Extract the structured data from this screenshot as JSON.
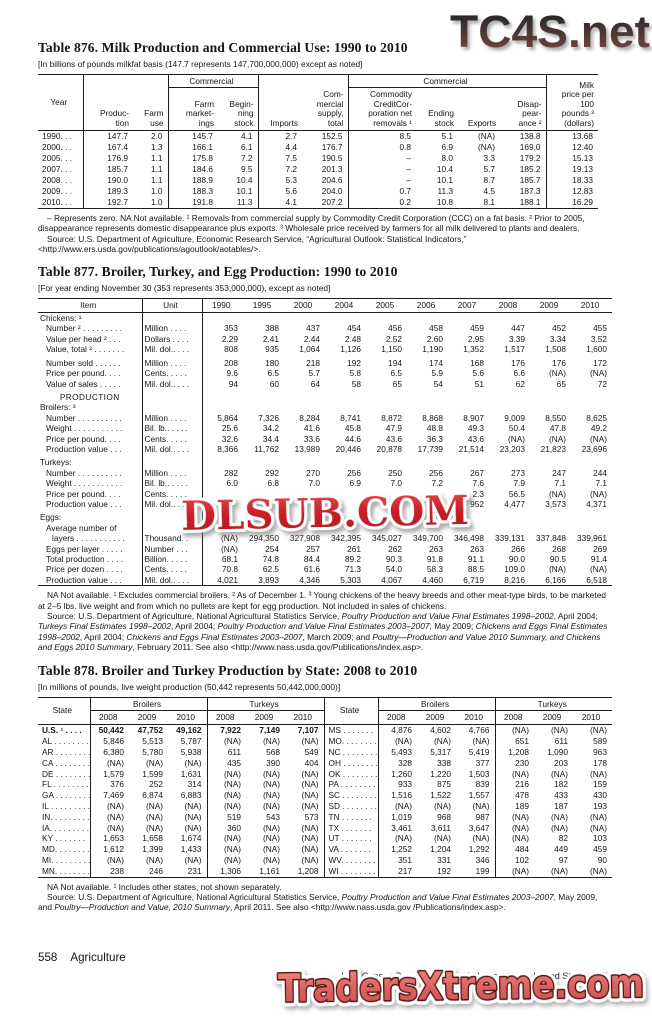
{
  "watermarks": {
    "top": "TC4S.net",
    "middle": "DLSUB.COM",
    "bottom": "TradersXtreme.com",
    "colors": {
      "top_gradient_start": "#2a2a2a",
      "top_gradient_end": "#7d4a42",
      "middle_red_light": "#e8504e",
      "middle_red_dark": "#b01820",
      "bottom_fill_light": "#ef8c85",
      "bottom_fill_dark": "#c75350",
      "bottom_outline": "#5c1616"
    }
  },
  "table876": {
    "title": "Table 876. Milk Production and Commercial Use: 1990 to 2010",
    "bracket": "[In billions of pounds milkfat basis (147.7 represents 147,700,000,000) except as noted]",
    "header": {
      "year": "Year",
      "production": "Produc-\ntion",
      "farm_use": "Farm\nuse",
      "commercial_group1": "Commercial",
      "farm_marketings": "Farm\nmarket-\nings",
      "beginning_stock": "Begin-\nning\nstock",
      "imports": "Imports",
      "commercial_supply": "Com-\nmercial\nsupply,\ntotal",
      "commercial_group2": "Commercial",
      "ccc_removals": "Commodity\nCreditCor-\nporation net\nremovals ¹",
      "ending_stock": "Ending\nstock",
      "exports": "Exports",
      "disappearance": "Disap-\npear-\nance ²",
      "milk_price": "Milk\nprice per\n100\npounds ³\n(dollars)"
    },
    "rows": [
      [
        "1990. . .",
        "147.7",
        "2.0",
        "145.7",
        "4.1",
        "2.7",
        "152.5",
        "8.5",
        "5.1",
        "(NA)",
        "138.8",
        "13.68"
      ],
      [
        "2000. . .",
        "167.4",
        "1.3",
        "166.1",
        "6.1",
        "4.4",
        "176.7",
        "0.8",
        "6.9",
        "(NA)",
        "169.0",
        "12.40"
      ],
      [
        "2005. . .",
        "176.9",
        "1.1",
        "175.8",
        "7.2",
        "7.5",
        "190.5",
        "–",
        "8.0",
        "3.3",
        "179.2",
        "15.13"
      ],
      [
        "2007. . .",
        "185.7",
        "1.1",
        "184.6",
        "9.5",
        "7.2",
        "201.3",
        "–",
        "10.4",
        "5.7",
        "185.2",
        "19.13"
      ],
      [
        "2008. . .",
        "190.0",
        "1.1",
        "188.9",
        "10.4",
        "5.3",
        "204.6",
        "–",
        "10.1",
        "8.7",
        "185.7",
        "18.33"
      ],
      [
        "2009. . .",
        "189.3",
        "1.0",
        "188.3",
        "10.1",
        "5.6",
        "204.0",
        "0.7",
        "11.3",
        "4.5",
        "187.3",
        "12.83"
      ],
      [
        "2010. . .",
        "192.7",
        "1.0",
        "191.8",
        "11.3",
        "4.1",
        "207.2",
        "0.2",
        "10.8",
        "8.1",
        "188.1",
        "16.29"
      ]
    ],
    "footnote": "– Represents zero. NA Not available.  ¹ Removals from commercial supply by Commodity Credit Corporation (CCC) on a fat basis.  ² Prior to 2005, disappearance represents domestic disappearance plus exports.  ³ Wholesale price received by farmers for all milk delivered to plants and dealers.",
    "source": "Source: U.S. Department of Agriculture, Economic Research Service, “Agricultural Outlook: Statistical Indicators,” <http://www.ers.usda.gov/publications/agoutlook/aotables/>."
  },
  "table877": {
    "title": "Table 877. Broiler, Turkey, and Egg Production: 1990 to 2010",
    "bracket": "[For year ending November 30 (353 represents 353,000,000), except as noted]",
    "item_header": "Item",
    "unit_header": "Unit",
    "years": [
      "1990",
      "1995",
      "2000",
      "2004",
      "2005",
      "2006",
      "2007",
      "2008",
      "2009",
      "2010"
    ],
    "rows": [
      {
        "t": "s",
        "label": "Chickens: ¹"
      },
      {
        "t": "d",
        "i": 1,
        "label": "Number ² . . . . . . . . .",
        "unit": "Million  . . . .",
        "v": [
          "353",
          "388",
          "437",
          "454",
          "456",
          "458",
          "459",
          "447",
          "452",
          "455"
        ]
      },
      {
        "t": "d",
        "i": 1,
        "label": "Value per head ²  . . .",
        "unit": "Dollars . . . .",
        "v": [
          "2.29",
          "2.41",
          "2.44",
          "2.48",
          "2.52",
          "2.60",
          "2.95",
          "3.39",
          "3.34",
          "3.52"
        ]
      },
      {
        "t": "d",
        "i": 1,
        "label": "Value, total ² . . . . . . .",
        "unit": "Mil. dol.. . . .",
        "v": [
          "808",
          "935",
          "1,064",
          "1,126",
          "1,150",
          "1,190",
          "1,352",
          "1,517",
          "1,508",
          "1,600"
        ]
      },
      {
        "t": "d",
        "i": 1,
        "g": true,
        "label": "Number sold  . . . . . .",
        "unit": "Million  . . . .",
        "v": [
          "208",
          "180",
          "218",
          "192",
          "194",
          "174",
          "168",
          "176",
          "176",
          "172"
        ]
      },
      {
        "t": "d",
        "i": 1,
        "label": "Price per pound. . . .",
        "unit": "Cents. . . . .",
        "v": [
          "9.6",
          "6.5",
          "5.7",
          "5.8",
          "6.5",
          "5.9",
          "5.6",
          "6.6",
          "(NA)",
          "(NA)"
        ]
      },
      {
        "t": "d",
        "i": 1,
        "label": "Value of sales  . . . . .",
        "unit": "Mil. dol.. . . .",
        "v": [
          "94",
          "60",
          "64",
          "58",
          "65",
          "54",
          "51",
          "62",
          "65",
          "72"
        ]
      },
      {
        "t": "c",
        "g": true,
        "label": "PRODUCTION"
      },
      {
        "t": "s",
        "label": "Broilers: ³"
      },
      {
        "t": "d",
        "i": 1,
        "label": "Number . . . . . . . . . .",
        "unit": "Million  . . . .",
        "v": [
          "5,864",
          "7,326",
          "8,284",
          "8,741",
          "8,872",
          "8,868",
          "8,907",
          "9,009",
          "8,550",
          "8,625"
        ]
      },
      {
        "t": "d",
        "i": 1,
        "label": "Weight . . . . . . . . . . .",
        "unit": "Bil. lb.. . . . .",
        "v": [
          "25.6",
          "34.2",
          "41.6",
          "45.8",
          "47.9",
          "48.8",
          "49.3",
          "50.4",
          "47.8",
          "49.2"
        ]
      },
      {
        "t": "d",
        "i": 1,
        "label": "Price per pound. . . .",
        "unit": "Cents. . . . .",
        "v": [
          "32.6",
          "34.4",
          "33.6",
          "44.6",
          "43.6",
          "36.3",
          "43.6",
          "(NA)",
          "(NA)",
          "(NA)"
        ]
      },
      {
        "t": "d",
        "i": 1,
        "label": "Production value  . . .",
        "unit": "Mil. dol.. . . .",
        "v": [
          "8,366",
          "11,762",
          "13,989",
          "20,446",
          "20,878",
          "17,739",
          "21,514",
          "23,203",
          "21,823",
          "23,696"
        ]
      },
      {
        "t": "s",
        "g": true,
        "label": "Turkeys:"
      },
      {
        "t": "d",
        "i": 1,
        "label": "Number . . . . . . . . . .",
        "unit": "Million  . . . .",
        "v": [
          "282",
          "292",
          "270",
          "256",
          "250",
          "256",
          "267",
          "273",
          "247",
          "244"
        ]
      },
      {
        "t": "d",
        "i": 1,
        "label": "Weight . . . . . . . . . . .",
        "unit": "Bil. lb.. . . . .",
        "v": [
          "6.0",
          "6.8",
          "7.0",
          "6.9",
          "7.0",
          "7.2",
          "7.6",
          "7.9",
          "7.1",
          "7.1"
        ]
      },
      {
        "t": "d",
        "i": 1,
        "label": "Price per pound. . . .",
        "unit": "Cents. . . . .",
        "v": [
          "",
          "",
          "",
          "",
          "",
          "",
          "2.3",
          "56.5",
          "(NA)",
          "(NA)"
        ]
      },
      {
        "t": "d",
        "i": 1,
        "label": "Production value  . . .",
        "unit": "Mil. dol.. . . .",
        "v": [
          "",
          "",
          "",
          "",
          "",
          "",
          "952",
          "4,477",
          "3,573",
          "4,371"
        ]
      },
      {
        "t": "s",
        "g": true,
        "label": "Eggs:"
      },
      {
        "t": "s2",
        "label": "Average number of"
      },
      {
        "t": "d",
        "i": 2,
        "label": "layers . . . . . . . . . . .",
        "unit": "Thousand. .",
        "v": [
          "(NA)",
          "294,350",
          "327,908",
          "342,395",
          "345,027",
          "349,700",
          "346,498",
          "339,131",
          "337,848",
          "339,961"
        ]
      },
      {
        "t": "d",
        "i": 1,
        "label": "Eggs per layer . . . . .",
        "unit": "Number . . .",
        "v": [
          "(NA)",
          "254",
          "257",
          "261",
          "262",
          "263",
          "263",
          "266",
          "268",
          "269"
        ]
      },
      {
        "t": "d",
        "i": 1,
        "label": "Total production . . . .",
        "unit": "Billion. . . . .",
        "v": [
          "68.1",
          "74.8",
          "84.4",
          "89.2",
          "90.3",
          "91.8",
          "91.1",
          "90.0",
          "90.5",
          "91.4"
        ]
      },
      {
        "t": "d",
        "i": 1,
        "label": "Price per dozen . . . .",
        "unit": "Cents. . . . .",
        "v": [
          "70.8",
          "62.5",
          "61.6",
          "71.3",
          "54.0",
          "58.3",
          "88.5",
          "109.0",
          "(NA)",
          "(NA)"
        ]
      },
      {
        "t": "d",
        "i": 1,
        "label": "Production value  . . .",
        "unit": "Mil. dol.. . . .",
        "v": [
          "4,021",
          "3,893",
          "4,346",
          "5,303",
          "4,067",
          "4,460",
          "6,719",
          "8,216",
          "6,166",
          "6,518"
        ]
      }
    ],
    "footnote": "NA Not available.  ¹ Excludes commercial broilers.  ² As of December 1.  ³ Young chickens of the heavy breeds and other meat-type birds, to be marketed at 2–5 lbs. live weight and from which no pullets are kept for egg production. Not included in sales of chickens.",
    "source_segments": [
      {
        "t": "Source: U.S. Department of Agriculture, National Agricultural Statistics Service, "
      },
      {
        "t": "Poultry Production and Value Final Estimates 1998–2002",
        "i": true
      },
      {
        "t": ", April 2004; "
      },
      {
        "t": "Turkeys Final Estimates 1998–2002",
        "i": true
      },
      {
        "t": ", April 2004; "
      },
      {
        "t": "Poultry Production and Value Final Estimates 2003–2007",
        "i": true
      },
      {
        "t": ", May 2009; "
      },
      {
        "t": "Chickens and Eggs Final Estimates 1998–2002",
        "i": true
      },
      {
        "t": ", April 2004; "
      },
      {
        "t": "Chickens and Eggs Final Estimates 2003–2007",
        "i": true
      },
      {
        "t": ", March 2009; and "
      },
      {
        "t": "Poultry—Production and Value 2010 Summary, and Chickens and Eggs 2010 Summary",
        "i": true
      },
      {
        "t": ", February 2011. See also <http://www.nass.usda.gov/Publications/index.asp>."
      }
    ]
  },
  "table878": {
    "title": "Table 878. Broiler and Turkey Production by State: 2008 to 2010",
    "bracket": "[In millions of pounds, live weight production (50,442 represents 50,442,000,000)]",
    "state_header": "State",
    "broilers_header": "Broilers",
    "turkeys_header": "Turkeys",
    "years": [
      "2008",
      "2009",
      "2010"
    ],
    "rows": [
      {
        "b": true,
        "c": [
          "U.S. ¹ . . . .",
          "50,442",
          "47,752",
          "49,162",
          "7,922",
          "7,149",
          "7,107",
          "MS . . . . . . .",
          "4,876",
          "4,602",
          "4,766",
          "(NA)",
          "(NA)",
          "(NA)"
        ]
      },
      {
        "c": [
          "AL . . . . . . . .",
          "5,846",
          "5,513",
          "5,787",
          "(NA)",
          "(NA)",
          "(NA)",
          "MO. . . . . . . .",
          "(NA)",
          "(NA)",
          "(NA)",
          "651",
          "611",
          "589"
        ]
      },
      {
        "c": [
          "AR . . . . . . . .",
          "6,380",
          "5,780",
          "5,938",
          "611",
          "568",
          "549",
          "NC . . . . . . . .",
          "5,493",
          "5,317",
          "5,419",
          "1,208",
          "1,090",
          "963"
        ]
      },
      {
        "c": [
          "CA . . . . . . . .",
          "(NA)",
          "(NA)",
          "(NA)",
          "435",
          "390",
          "404",
          "OH . . . . . . . .",
          "328",
          "338",
          "377",
          "230",
          "203",
          "178"
        ]
      },
      {
        "c": [
          "DE . . . . . . . .",
          "1,579",
          "1,599",
          "1,631",
          "(NA)",
          "(NA)",
          "(NA)",
          "OK . . . . . . . .",
          "1,260",
          "1,220",
          "1,503",
          "(NA)",
          "(NA)",
          "(NA)"
        ]
      },
      {
        "c": [
          "FL  . . . . . . . .",
          "376",
          "252",
          "314",
          "(NA)",
          "(NA)",
          "(NA)",
          "PA  . . . . . . . .",
          "933",
          "875",
          "839",
          "216",
          "182",
          "159"
        ]
      },
      {
        "c": [
          "GA . . . . . . . .",
          "7,469",
          "6,874",
          "6,883",
          "(NA)",
          "(NA)",
          "(NA)",
          "SC . . . . . . . .",
          "1,516",
          "1,522",
          "1,557",
          "478",
          "433",
          "430"
        ]
      },
      {
        "c": [
          "IL . . . . . . . . .",
          "(NA)",
          "(NA)",
          "(NA)",
          "(NA)",
          "(NA)",
          "(NA)",
          "SD . . . . . . . .",
          "(NA)",
          "(NA)",
          "(NA)",
          "189",
          "187",
          "193"
        ]
      },
      {
        "c": [
          "IN. . . . . . . . .",
          "(NA)",
          "(NA)",
          "(NA)",
          "519",
          "543",
          "573",
          "TN  . . . . . . .",
          "1,019",
          "968",
          "987",
          "(NA)",
          "(NA)",
          "(NA)"
        ]
      },
      {
        "c": [
          "IA. . . . . . . . .",
          "(NA)",
          "(NA)",
          "(NA)",
          "360",
          "(NA)",
          "(NA)",
          "TX  . . . . . . .",
          "3,461",
          "3,611",
          "3,647",
          "(NA)",
          "(NA)",
          "(NA)"
        ]
      },
      {
        "c": [
          "KY  . . . . . . .",
          "1,653",
          "1,658",
          "1,674",
          "(NA)",
          "(NA)",
          "(NA)",
          "UT  . . . . . . .",
          "(NA)",
          "(NA)",
          "(NA)",
          "(NA)",
          "82",
          "103"
        ]
      },
      {
        "c": [
          "MD. . . . . . . .",
          "1,612",
          "1,399",
          "1,433",
          "(NA)",
          "(NA)",
          "(NA)",
          "VA  . . . . . . .",
          "1,252",
          "1,204",
          "1,292",
          "484",
          "449",
          "459"
        ]
      },
      {
        "c": [
          "MI. . . . . . . . .",
          "(NA)",
          "(NA)",
          "(NA)",
          "(NA)",
          "(NA)",
          "(NA)",
          "WV. . . . . . . .",
          "351",
          "331",
          "346",
          "102",
          "97",
          "90"
        ]
      },
      {
        "c": [
          "MN. . . . . . . .",
          "238",
          "246",
          "231",
          "1,306",
          "1,161",
          "1,208",
          "WI  . . . . . . . .",
          "217",
          "192",
          "199",
          "(NA)",
          "(NA)",
          "(NA)"
        ]
      }
    ],
    "footnote": "NA Not available.  ¹ Includes other states, not shown separately.",
    "source_segments": [
      {
        "t": "Source: U.S. Department of Agriculture, National Agricultural Statistics Service, "
      },
      {
        "t": "Poultry Production and Value Final Estimates 2003–2007",
        "i": true
      },
      {
        "t": ", May 2009, and "
      },
      {
        "t": "Poultry—Production and Value, 2010 Summary",
        "i": true
      },
      {
        "t": ", April 2011. See also <http://www.nass.usda.gov /Publications/index.asp>."
      }
    ]
  },
  "footer": {
    "page_number": "558",
    "section_label": "Agriculture",
    "census_line": "U.S. Census Bureau, Statistical Abstract of the United States: 2012"
  }
}
